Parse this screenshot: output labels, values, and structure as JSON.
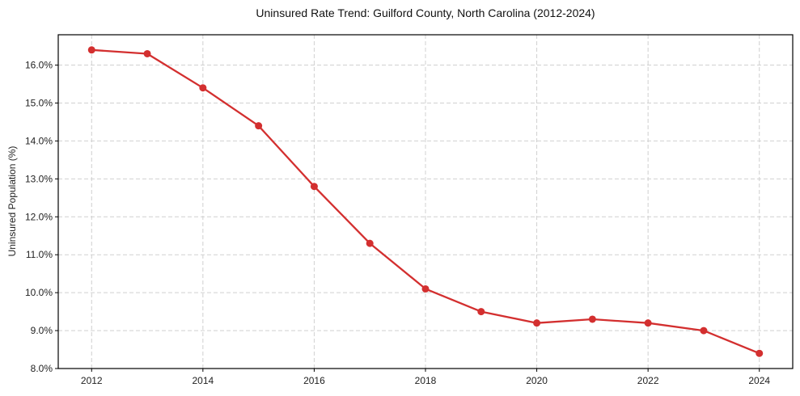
{
  "chart_data": {
    "type": "line",
    "title": "Uninsured Rate Trend: Guilford County, North Carolina (2012-2024)",
    "xlabel": "",
    "ylabel": "Uninsured Population (%)",
    "x": [
      2012,
      2013,
      2014,
      2015,
      2016,
      2017,
      2018,
      2019,
      2020,
      2021,
      2022,
      2023,
      2024
    ],
    "series": [
      {
        "name": "Uninsured Rate",
        "values": [
          16.4,
          16.3,
          15.4,
          14.4,
          12.8,
          11.3,
          10.1,
          9.5,
          9.2,
          9.3,
          9.2,
          9.0,
          8.4
        ],
        "color": "#d32f2f",
        "marker": "circle"
      }
    ],
    "xticks": [
      "2012",
      "2014",
      "2016",
      "2018",
      "2020",
      "2022",
      "2024"
    ],
    "yticks": [
      "8.0%",
      "9.0%",
      "10.0%",
      "11.0%",
      "12.0%",
      "13.0%",
      "14.0%",
      "15.0%",
      "16.0%"
    ],
    "xlim": [
      2011.4,
      2024.6
    ],
    "ylim": [
      8.0,
      16.8
    ],
    "grid": true,
    "legend": null
  }
}
